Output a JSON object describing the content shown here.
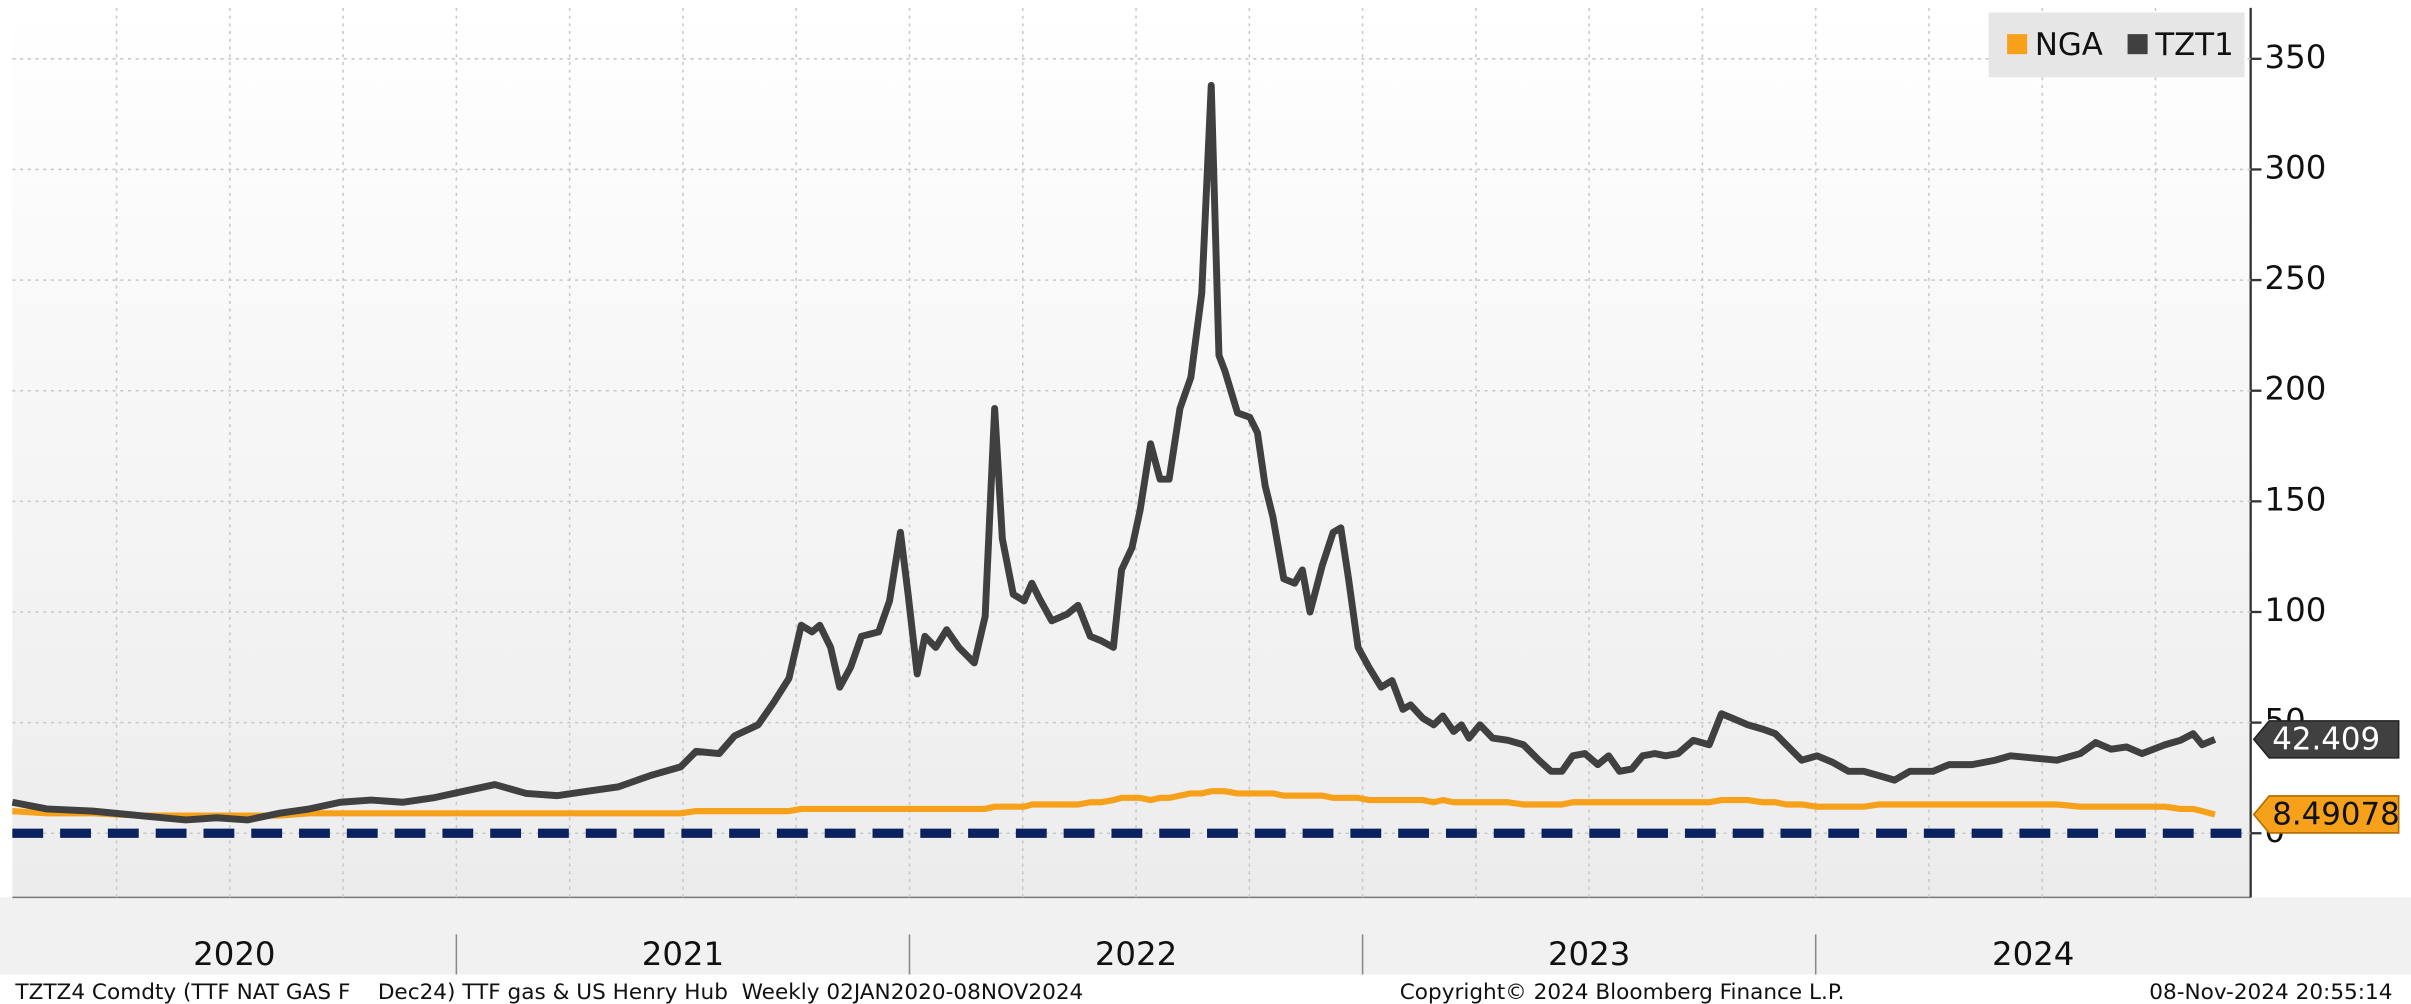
{
  "chart_data": {
    "type": "line",
    "x": [
      2020.02,
      2020.096,
      2020.198,
      2020.3,
      2020.403,
      2020.471,
      2020.539,
      2020.608,
      2020.676,
      2020.744,
      2020.812,
      2020.881,
      2020.949,
      2021.017,
      2021.085,
      2021.154,
      2021.222,
      2021.29,
      2021.358,
      2021.427,
      2021.495,
      2021.529,
      2021.58,
      2021.614,
      2021.666,
      2021.7,
      2021.734,
      2021.761,
      2021.785,
      2021.802,
      2021.826,
      2021.846,
      2021.87,
      2021.894,
      2021.932,
      2021.956,
      2021.98,
      2021.997,
      2022.017,
      2022.034,
      2022.058,
      2022.082,
      2022.109,
      2022.143,
      2022.167,
      2022.188,
      2022.205,
      2022.229,
      2022.253,
      2022.27,
      2022.287,
      2022.314,
      2022.348,
      2022.372,
      2022.399,
      2022.423,
      2022.45,
      2022.468,
      2022.491,
      2022.509,
      2022.532,
      2022.553,
      2022.573,
      2022.597,
      2022.621,
      2022.645,
      2022.666,
      2022.683,
      2022.696,
      2022.724,
      2022.751,
      2022.768,
      2022.785,
      2022.802,
      2022.826,
      2022.85,
      2022.867,
      2022.884,
      2022.911,
      2022.935,
      2022.952,
      2022.969,
      2022.99,
      2023.014,
      2023.041,
      2023.065,
      2023.089,
      2023.106,
      2023.133,
      2023.157,
      2023.177,
      2023.201,
      2023.218,
      2023.235,
      2023.259,
      2023.287,
      2023.321,
      2023.355,
      2023.389,
      2023.416,
      2023.44,
      2023.464,
      2023.491,
      2023.519,
      2023.543,
      2023.567,
      2023.594,
      2023.618,
      2023.645,
      2023.669,
      2023.696,
      2023.73,
      2023.765,
      2023.792,
      2023.816,
      2023.85,
      2023.884,
      2023.911,
      2023.935,
      2023.969,
      2024.003,
      2024.038,
      2024.072,
      2024.106,
      2024.14,
      2024.174,
      2024.208,
      2024.259,
      2024.294,
      2024.345,
      2024.396,
      2024.43,
      2024.481,
      2024.532,
      2024.584,
      2024.618,
      2024.652,
      2024.686,
      2024.72,
      2024.771,
      2024.805,
      2024.833,
      2024.853,
      2024.881
    ],
    "series": [
      {
        "name": "NGA",
        "color": "#f7a11a",
        "values": [
          10,
          9,
          9,
          8,
          8,
          8,
          8,
          8,
          9,
          9,
          9,
          9,
          9,
          9,
          9,
          9,
          9,
          9,
          9,
          9,
          9,
          10,
          10,
          10,
          10,
          10,
          10,
          11,
          11,
          11,
          11,
          11,
          11,
          11,
          11,
          11,
          11,
          11,
          11,
          11,
          11,
          11,
          11,
          11,
          11,
          12,
          12,
          12,
          12,
          13,
          13,
          13,
          13,
          13,
          14,
          14,
          15,
          16,
          16,
          16,
          15,
          16,
          16,
          17,
          18,
          18,
          19,
          19,
          19,
          18,
          18,
          18,
          18,
          18,
          17,
          17,
          17,
          17,
          17,
          16,
          16,
          16,
          16,
          15,
          15,
          15,
          15,
          15,
          15,
          14,
          15,
          14,
          14,
          14,
          14,
          14,
          14,
          13,
          13,
          13,
          13,
          14,
          14,
          14,
          14,
          14,
          14,
          14,
          14,
          14,
          14,
          14,
          14,
          15,
          15,
          15,
          14,
          14,
          13,
          13,
          12,
          12,
          12,
          12,
          13,
          13,
          13,
          13,
          13,
          13,
          13,
          13,
          13,
          13,
          12,
          12,
          12,
          12,
          12,
          12,
          11,
          11,
          10,
          8.49078
        ]
      },
      {
        "name": "TZT1",
        "color": "#404040",
        "values": [
          14,
          11,
          10,
          8,
          6,
          7,
          6,
          9,
          11,
          14,
          15,
          14,
          16,
          19,
          22,
          18,
          17,
          19,
          21,
          26,
          30,
          37,
          36,
          44,
          49,
          59,
          70,
          94,
          91,
          94,
          84,
          66,
          75,
          89,
          91,
          105,
          136,
          108,
          72,
          89,
          84,
          92,
          84,
          77,
          98,
          192,
          133,
          108,
          105,
          113,
          106,
          96,
          99,
          103,
          89,
          87,
          84,
          119,
          129,
          146,
          176,
          160,
          160,
          192,
          206,
          244,
          338,
          216,
          209,
          190,
          188,
          181,
          157,
          143,
          115,
          113,
          119,
          100,
          121,
          136,
          138,
          115,
          84,
          75,
          66,
          69,
          56,
          58,
          52,
          49,
          53,
          46,
          49,
          43,
          49,
          43,
          42,
          40,
          33,
          28,
          28,
          35,
          36,
          31,
          35,
          28,
          29,
          35,
          36,
          35,
          36,
          42,
          40,
          54,
          52,
          49,
          47,
          45,
          40,
          33,
          35,
          32,
          28,
          28,
          26,
          24,
          28,
          28,
          31,
          31,
          33,
          35,
          34,
          33,
          36,
          41,
          38,
          39,
          36,
          40,
          42,
          45,
          40,
          42.409
        ]
      }
    ],
    "xlim": [
      2020.02,
      2024.96
    ],
    "xticks": [
      2020,
      2021,
      2022,
      2023,
      2024
    ],
    "xgrid": [
      2020.25,
      2020.5,
      2020.75,
      2021.25,
      2021.5,
      2021.75,
      2022.25,
      2022.5,
      2022.75,
      2023.25,
      2023.5,
      2023.75,
      2024.25,
      2024.5,
      2024.75
    ],
    "ylim": [
      -29,
      373
    ],
    "yticks": [
      0,
      50,
      100,
      150,
      200,
      250,
      300,
      350
    ],
    "grid": true,
    "reference_line": {
      "value": 0,
      "color": "#0b2260"
    },
    "legend": "top-right",
    "footer": {
      "left": "TZTZ4 Comdty (TTF NAT GAS F    Dec24) TTF gas & US Henry Hub  Weekly 02JAN2020-08NOV2024",
      "center": "Copyright© 2024 Bloomberg Finance L.P.",
      "right": "08-Nov-2024 20:55:14"
    }
  }
}
